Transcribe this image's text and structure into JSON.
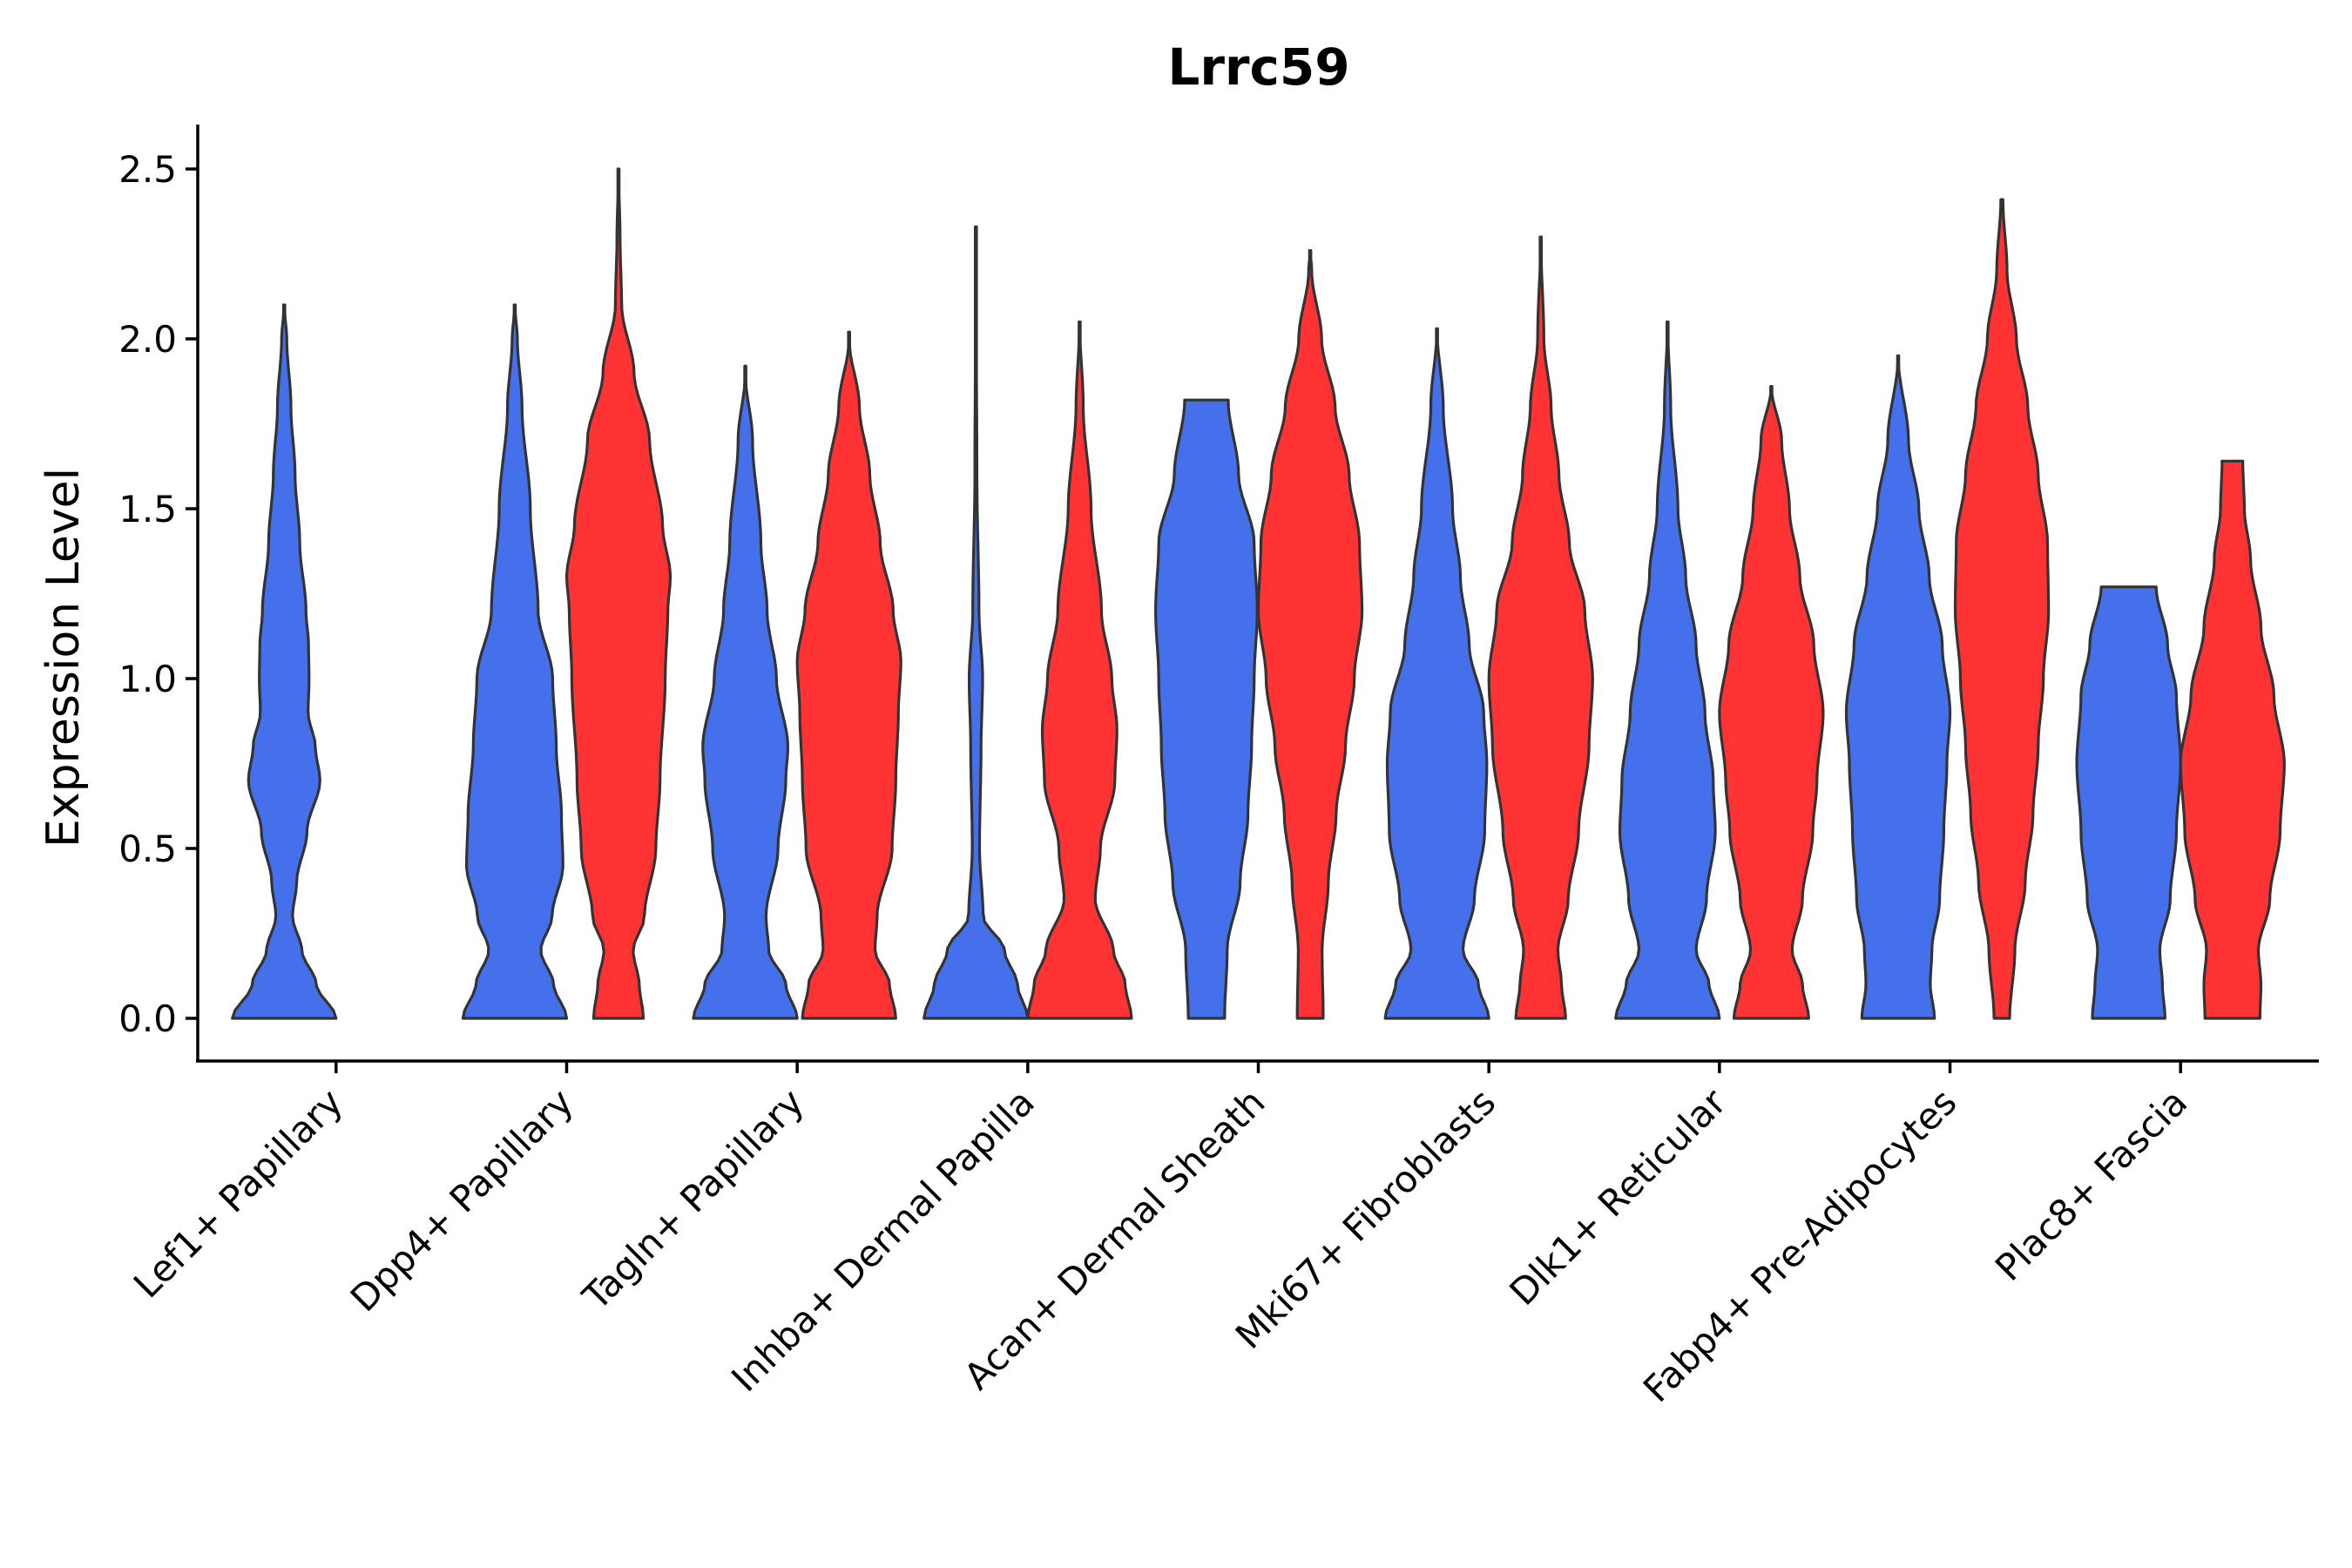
{
  "chart_data": {
    "type": "violin",
    "title": "Lrrc59",
    "xlabel": "",
    "ylabel": "Expression Level",
    "ylim": [
      -0.12,
      2.63
    ],
    "yticks": [
      "0.0",
      "0.5",
      "1.0",
      "1.5",
      "2.0",
      "2.5"
    ],
    "ytick_values": [
      0,
      0.5,
      1.0,
      1.5,
      2.0,
      2.5
    ],
    "categories": [
      "Lef1+ Papillary",
      "Dpp4+ Papillary",
      "Tagln+ Papillary",
      "Inhba+ Dermal Papilla",
      "Acan+ Dermal Sheath",
      "Mki67+ Fibroblasts",
      "Dlk1+ Reticular",
      "Fabp4+ Pre-Adipocytes",
      "Plac8+ Fascia"
    ],
    "split_colors": [
      "#4570EB",
      "#FF3333"
    ],
    "violins": [
      {
        "category": 0,
        "split": 0,
        "max": 2.1,
        "profile": [
          [
            0,
            1.0
          ],
          [
            0.1,
            0.62
          ],
          [
            0.2,
            0.34
          ],
          [
            0.3,
            0.16
          ],
          [
            0.4,
            0.24
          ],
          [
            0.55,
            0.44
          ],
          [
            0.7,
            0.69
          ],
          [
            0.8,
            0.6
          ],
          [
            0.9,
            0.46
          ],
          [
            1.0,
            0.48
          ],
          [
            1.1,
            0.47
          ],
          [
            1.2,
            0.42
          ],
          [
            1.4,
            0.3
          ],
          [
            1.6,
            0.21
          ],
          [
            1.8,
            0.13
          ],
          [
            2.0,
            0.05
          ],
          [
            2.1,
            0.0
          ]
        ]
      },
      {
        "category": 1,
        "split": 0,
        "max": 2.1,
        "profile": [
          [
            0,
            1.0
          ],
          [
            0.1,
            0.75
          ],
          [
            0.2,
            0.5
          ],
          [
            0.3,
            0.72
          ],
          [
            0.45,
            0.93
          ],
          [
            0.6,
            0.9
          ],
          [
            0.8,
            0.8
          ],
          [
            1.0,
            0.73
          ],
          [
            1.2,
            0.45
          ],
          [
            1.5,
            0.3
          ],
          [
            1.8,
            0.14
          ],
          [
            2.0,
            0.05
          ],
          [
            2.1,
            0.0
          ]
        ]
      },
      {
        "category": 1,
        "split": 1,
        "max": 2.5,
        "profile": [
          [
            0,
            0.48
          ],
          [
            0.1,
            0.4
          ],
          [
            0.2,
            0.28
          ],
          [
            0.3,
            0.5
          ],
          [
            0.5,
            0.72
          ],
          [
            0.7,
            0.8
          ],
          [
            1.0,
            0.9
          ],
          [
            1.2,
            0.95
          ],
          [
            1.3,
            1.0
          ],
          [
            1.45,
            0.85
          ],
          [
            1.7,
            0.6
          ],
          [
            1.9,
            0.3
          ],
          [
            2.1,
            0.06
          ],
          [
            2.3,
            0.03
          ],
          [
            2.5,
            0.0
          ]
        ]
      },
      {
        "category": 2,
        "split": 0,
        "max": 1.92,
        "profile": [
          [
            0,
            1.0
          ],
          [
            0.1,
            0.78
          ],
          [
            0.2,
            0.45
          ],
          [
            0.3,
            0.4
          ],
          [
            0.5,
            0.63
          ],
          [
            0.7,
            0.78
          ],
          [
            0.8,
            0.82
          ],
          [
            1.0,
            0.6
          ],
          [
            1.2,
            0.42
          ],
          [
            1.4,
            0.3
          ],
          [
            1.7,
            0.14
          ],
          [
            1.9,
            0.0
          ]
        ]
      },
      {
        "category": 2,
        "split": 1,
        "max": 2.02,
        "profile": [
          [
            0,
            0.9
          ],
          [
            0.1,
            0.78
          ],
          [
            0.2,
            0.5
          ],
          [
            0.3,
            0.54
          ],
          [
            0.5,
            0.83
          ],
          [
            0.7,
            0.9
          ],
          [
            0.9,
            0.95
          ],
          [
            1.05,
            1.0
          ],
          [
            1.2,
            0.85
          ],
          [
            1.4,
            0.6
          ],
          [
            1.6,
            0.4
          ],
          [
            1.8,
            0.2
          ],
          [
            2.0,
            0.0
          ]
        ]
      },
      {
        "category": 3,
        "split": 0,
        "max": 2.33,
        "profile": [
          [
            0,
            1.0
          ],
          [
            0.1,
            0.8
          ],
          [
            0.2,
            0.55
          ],
          [
            0.3,
            0.14
          ],
          [
            0.5,
            0.07
          ],
          [
            0.8,
            0.1
          ],
          [
            1.0,
            0.13
          ],
          [
            1.2,
            0.06
          ],
          [
            1.6,
            0.02
          ],
          [
            2.0,
            0.01
          ],
          [
            2.33,
            0.0
          ]
        ]
      },
      {
        "category": 3,
        "split": 1,
        "max": 2.05,
        "profile": [
          [
            0,
            1.0
          ],
          [
            0.1,
            0.88
          ],
          [
            0.2,
            0.65
          ],
          [
            0.35,
            0.3
          ],
          [
            0.5,
            0.4
          ],
          [
            0.7,
            0.68
          ],
          [
            0.85,
            0.72
          ],
          [
            1.0,
            0.62
          ],
          [
            1.2,
            0.42
          ],
          [
            1.5,
            0.22
          ],
          [
            1.8,
            0.07
          ],
          [
            2.05,
            0.0
          ]
        ]
      },
      {
        "category": 4,
        "split": 0,
        "max": 1.82,
        "profile": [
          [
            0,
            0.35
          ],
          [
            0.2,
            0.4
          ],
          [
            0.4,
            0.65
          ],
          [
            0.6,
            0.8
          ],
          [
            0.8,
            0.87
          ],
          [
            1.0,
            0.92
          ],
          [
            1.2,
            0.98
          ],
          [
            1.4,
            0.92
          ],
          [
            1.6,
            0.62
          ],
          [
            1.82,
            0.42
          ]
        ]
      },
      {
        "category": 4,
        "split": 1,
        "max": 2.26,
        "profile": [
          [
            0,
            0.25
          ],
          [
            0.2,
            0.23
          ],
          [
            0.4,
            0.35
          ],
          [
            0.6,
            0.5
          ],
          [
            0.8,
            0.68
          ],
          [
            1.0,
            0.85
          ],
          [
            1.2,
            1.0
          ],
          [
            1.4,
            0.95
          ],
          [
            1.6,
            0.75
          ],
          [
            1.8,
            0.48
          ],
          [
            2.0,
            0.22
          ],
          [
            2.2,
            0.03
          ],
          [
            2.26,
            0.0
          ]
        ]
      },
      {
        "category": 5,
        "split": 0,
        "max": 2.03,
        "profile": [
          [
            0,
            1.0
          ],
          [
            0.1,
            0.8
          ],
          [
            0.2,
            0.5
          ],
          [
            0.35,
            0.72
          ],
          [
            0.55,
            0.92
          ],
          [
            0.75,
            0.96
          ],
          [
            0.9,
            0.9
          ],
          [
            1.1,
            0.62
          ],
          [
            1.3,
            0.45
          ],
          [
            1.5,
            0.3
          ],
          [
            1.8,
            0.12
          ],
          [
            2.03,
            0.0
          ]
        ]
      },
      {
        "category": 5,
        "split": 1,
        "max": 2.3,
        "profile": [
          [
            0,
            0.48
          ],
          [
            0.1,
            0.4
          ],
          [
            0.2,
            0.33
          ],
          [
            0.35,
            0.53
          ],
          [
            0.55,
            0.73
          ],
          [
            0.8,
            0.93
          ],
          [
            1.0,
            1.0
          ],
          [
            1.2,
            0.85
          ],
          [
            1.4,
            0.55
          ],
          [
            1.6,
            0.35
          ],
          [
            1.8,
            0.2
          ],
          [
            2.0,
            0.06
          ],
          [
            2.3,
            0.0
          ]
        ]
      },
      {
        "category": 6,
        "split": 0,
        "max": 2.05,
        "profile": [
          [
            0,
            1.0
          ],
          [
            0.1,
            0.8
          ],
          [
            0.2,
            0.55
          ],
          [
            0.35,
            0.75
          ],
          [
            0.55,
            0.92
          ],
          [
            0.7,
            0.88
          ],
          [
            0.9,
            0.72
          ],
          [
            1.1,
            0.55
          ],
          [
            1.3,
            0.35
          ],
          [
            1.5,
            0.2
          ],
          [
            1.8,
            0.06
          ],
          [
            2.05,
            0.0
          ]
        ]
      },
      {
        "category": 6,
        "split": 1,
        "max": 1.86,
        "profile": [
          [
            0,
            0.72
          ],
          [
            0.1,
            0.6
          ],
          [
            0.2,
            0.4
          ],
          [
            0.35,
            0.6
          ],
          [
            0.55,
            0.8
          ],
          [
            0.7,
            0.88
          ],
          [
            0.9,
            1.0
          ],
          [
            1.1,
            0.82
          ],
          [
            1.3,
            0.55
          ],
          [
            1.5,
            0.35
          ],
          [
            1.7,
            0.2
          ],
          [
            1.86,
            0.0
          ]
        ]
      },
      {
        "category": 7,
        "split": 0,
        "max": 1.95,
        "profile": [
          [
            0,
            0.7
          ],
          [
            0.1,
            0.62
          ],
          [
            0.2,
            0.65
          ],
          [
            0.35,
            0.8
          ],
          [
            0.55,
            0.88
          ],
          [
            0.75,
            0.94
          ],
          [
            0.9,
            1.0
          ],
          [
            1.1,
            0.85
          ],
          [
            1.3,
            0.6
          ],
          [
            1.5,
            0.4
          ],
          [
            1.7,
            0.2
          ],
          [
            1.95,
            0.0
          ]
        ]
      },
      {
        "category": 7,
        "split": 1,
        "max": 2.41,
        "profile": [
          [
            0,
            0.15
          ],
          [
            0.2,
            0.25
          ],
          [
            0.4,
            0.45
          ],
          [
            0.6,
            0.6
          ],
          [
            0.8,
            0.7
          ],
          [
            1.0,
            0.8
          ],
          [
            1.2,
            0.9
          ],
          [
            1.4,
            0.88
          ],
          [
            1.6,
            0.7
          ],
          [
            1.8,
            0.5
          ],
          [
            2.0,
            0.28
          ],
          [
            2.2,
            0.1
          ],
          [
            2.41,
            0.02
          ]
        ]
      },
      {
        "category": 8,
        "split": 0,
        "max": 1.27,
        "profile": [
          [
            0,
            0.7
          ],
          [
            0.1,
            0.65
          ],
          [
            0.2,
            0.6
          ],
          [
            0.35,
            0.8
          ],
          [
            0.55,
            0.92
          ],
          [
            0.75,
            1.0
          ],
          [
            0.95,
            0.92
          ],
          [
            1.1,
            0.75
          ],
          [
            1.27,
            0.53
          ]
        ]
      },
      {
        "category": 8,
        "split": 1,
        "max": 1.64,
        "profile": [
          [
            0,
            0.53
          ],
          [
            0.1,
            0.55
          ],
          [
            0.2,
            0.5
          ],
          [
            0.35,
            0.72
          ],
          [
            0.55,
            0.92
          ],
          [
            0.75,
            1.0
          ],
          [
            0.95,
            0.8
          ],
          [
            1.15,
            0.55
          ],
          [
            1.35,
            0.35
          ],
          [
            1.5,
            0.23
          ],
          [
            1.64,
            0.2
          ]
        ]
      }
    ]
  }
}
